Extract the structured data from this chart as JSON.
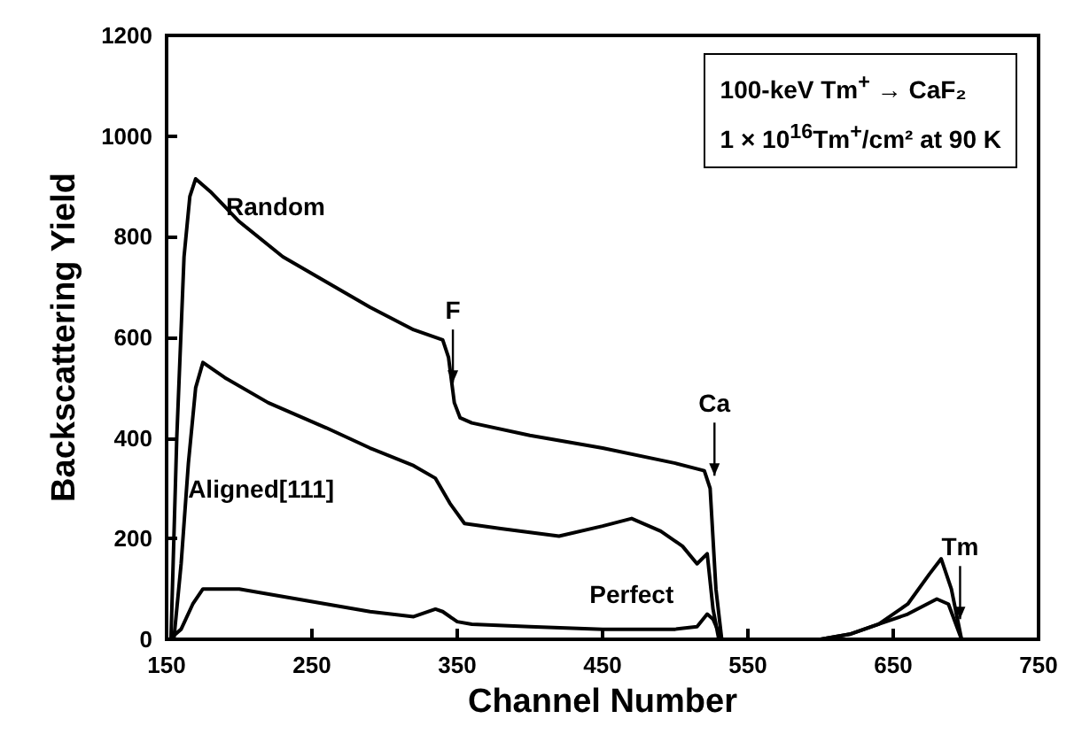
{
  "chart_data": {
    "type": "line",
    "xlabel": "Channel Number",
    "ylabel": "Backscattering Yield",
    "xlim": [
      150,
      750
    ],
    "ylim": [
      0,
      1200
    ],
    "xticks": [
      150,
      250,
      350,
      450,
      550,
      650,
      750
    ],
    "yticks": [
      0,
      200,
      400,
      600,
      800,
      1000,
      1200
    ],
    "grid": false,
    "legend": false,
    "marker": "none",
    "line_style": "solid",
    "series": [
      {
        "name": "Random",
        "color": "#000000",
        "x": [
          153,
          157,
          162,
          166,
          170,
          180,
          200,
          230,
          260,
          290,
          320,
          340,
          344,
          348,
          352,
          360,
          400,
          450,
          500,
          520,
          524,
          528,
          532,
          560,
          600,
          620,
          640,
          660,
          675,
          683,
          690,
          697
        ],
        "values": [
          0,
          400,
          760,
          880,
          915,
          890,
          830,
          760,
          710,
          660,
          615,
          595,
          560,
          470,
          440,
          430,
          405,
          380,
          350,
          335,
          300,
          100,
          0,
          0,
          0,
          10,
          30,
          70,
          130,
          160,
          100,
          0
        ]
      },
      {
        "name": "Aligned[111]",
        "color": "#000000",
        "x": [
          155,
          160,
          165,
          170,
          175,
          190,
          220,
          260,
          290,
          320,
          335,
          345,
          355,
          380,
          420,
          450,
          470,
          490,
          505,
          515,
          522,
          526,
          530,
          560,
          600,
          620,
          640,
          660,
          680,
          688,
          697
        ],
        "values": [
          0,
          150,
          350,
          500,
          550,
          520,
          470,
          420,
          380,
          345,
          320,
          270,
          230,
          220,
          205,
          225,
          240,
          215,
          185,
          150,
          170,
          60,
          0,
          0,
          0,
          10,
          30,
          50,
          80,
          70,
          0
        ]
      },
      {
        "name": "Perfect",
        "color": "#000000",
        "x": [
          152,
          160,
          168,
          175,
          200,
          230,
          260,
          290,
          320,
          335,
          340,
          350,
          360,
          400,
          450,
          500,
          515,
          522,
          526,
          532,
          560,
          600
        ],
        "values": [
          0,
          20,
          70,
          100,
          100,
          85,
          70,
          55,
          45,
          60,
          55,
          35,
          30,
          25,
          20,
          20,
          25,
          50,
          40,
          0,
          0,
          0
        ]
      }
    ],
    "annotations": [
      "100-keV Tm$^{+}$ → CaF₂",
      "1 × 10$^{16}$Tm$^{+}$/cm² at 90 K",
      {
        "text": "F",
        "x": 347,
        "y": 510
      },
      {
        "text": "Ca",
        "x": 527,
        "y": 325
      },
      {
        "text": "Tm",
        "x": 696,
        "y": 40
      }
    ]
  }
}
